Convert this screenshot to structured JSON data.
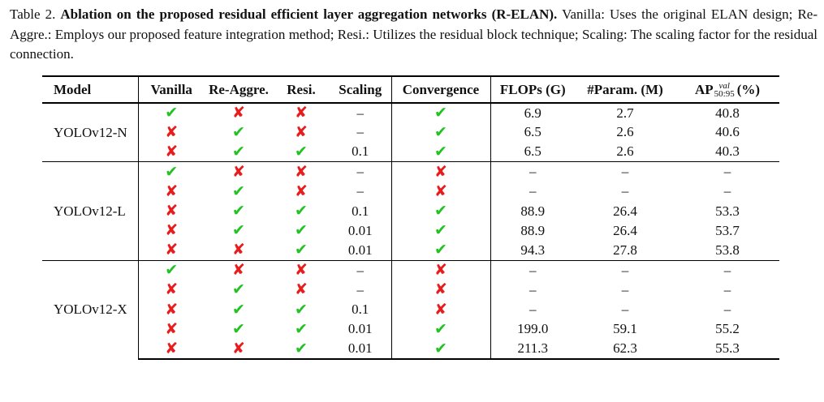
{
  "caption": {
    "label": "Table 2.",
    "bold_title": "Ablation on the proposed residual efficient layer aggregation networks (R-ELAN).",
    "line1_rest": "Vanilla: Uses the original ELAN design;",
    "line2": "Re-Aggre.: Employs our proposed feature integration method; Resi.: Utilizes the residual block technique; Scaling: The scaling factor for",
    "line3": "the residual connection."
  },
  "headers": {
    "model": "Model",
    "vanilla": "Vanilla",
    "reaggre": "Re-Aggre.",
    "resi": "Resi.",
    "scaling": "Scaling",
    "convergence": "Convergence",
    "flops": "FLOPs (G)",
    "params": "#Param. (M)",
    "ap_main": "AP",
    "ap_sup": "val",
    "ap_sub": "50:95",
    "ap_unit": "(%)"
  },
  "symbols": {
    "check": "✔",
    "cross": "✘"
  },
  "groups": [
    {
      "model": "YOLOv12-N",
      "rows": [
        {
          "vanilla": true,
          "reaggre": false,
          "resi": false,
          "scaling": "–",
          "convergence": true,
          "flops": "6.9",
          "params": "2.7",
          "ap": "40.8"
        },
        {
          "vanilla": false,
          "reaggre": true,
          "resi": false,
          "scaling": "–",
          "convergence": true,
          "flops": "6.5",
          "params": "2.6",
          "ap": "40.6"
        },
        {
          "vanilla": false,
          "reaggre": true,
          "resi": true,
          "scaling": "0.1",
          "convergence": true,
          "flops": "6.5",
          "params": "2.6",
          "ap": "40.3"
        }
      ]
    },
    {
      "model": "YOLOv12-L",
      "rows": [
        {
          "vanilla": true,
          "reaggre": false,
          "resi": false,
          "scaling": "–",
          "convergence": false,
          "flops": "–",
          "params": "–",
          "ap": "–"
        },
        {
          "vanilla": false,
          "reaggre": true,
          "resi": false,
          "scaling": "–",
          "convergence": false,
          "flops": "–",
          "params": "–",
          "ap": "–"
        },
        {
          "vanilla": false,
          "reaggre": true,
          "resi": true,
          "scaling": "0.1",
          "convergence": true,
          "flops": "88.9",
          "params": "26.4",
          "ap": "53.3"
        },
        {
          "vanilla": false,
          "reaggre": true,
          "resi": true,
          "scaling": "0.01",
          "convergence": true,
          "flops": "88.9",
          "params": "26.4",
          "ap": "53.7"
        },
        {
          "vanilla": false,
          "reaggre": false,
          "resi": true,
          "scaling": "0.01",
          "convergence": true,
          "flops": "94.3",
          "params": "27.8",
          "ap": "53.8"
        }
      ]
    },
    {
      "model": "YOLOv12-X",
      "rows": [
        {
          "vanilla": true,
          "reaggre": false,
          "resi": false,
          "scaling": "–",
          "convergence": false,
          "flops": "–",
          "params": "–",
          "ap": "–"
        },
        {
          "vanilla": false,
          "reaggre": true,
          "resi": false,
          "scaling": "–",
          "convergence": false,
          "flops": "–",
          "params": "–",
          "ap": "–"
        },
        {
          "vanilla": false,
          "reaggre": true,
          "resi": true,
          "scaling": "0.1",
          "convergence": false,
          "flops": "–",
          "params": "–",
          "ap": "–"
        },
        {
          "vanilla": false,
          "reaggre": true,
          "resi": true,
          "scaling": "0.01",
          "convergence": true,
          "flops": "199.0",
          "params": "59.1",
          "ap": "55.2"
        },
        {
          "vanilla": false,
          "reaggre": false,
          "resi": true,
          "scaling": "0.01",
          "convergence": true,
          "flops": "211.3",
          "params": "62.3",
          "ap": "55.3"
        }
      ]
    }
  ],
  "colors": {
    "check": "#22c222",
    "cross": "#e81c1c"
  }
}
